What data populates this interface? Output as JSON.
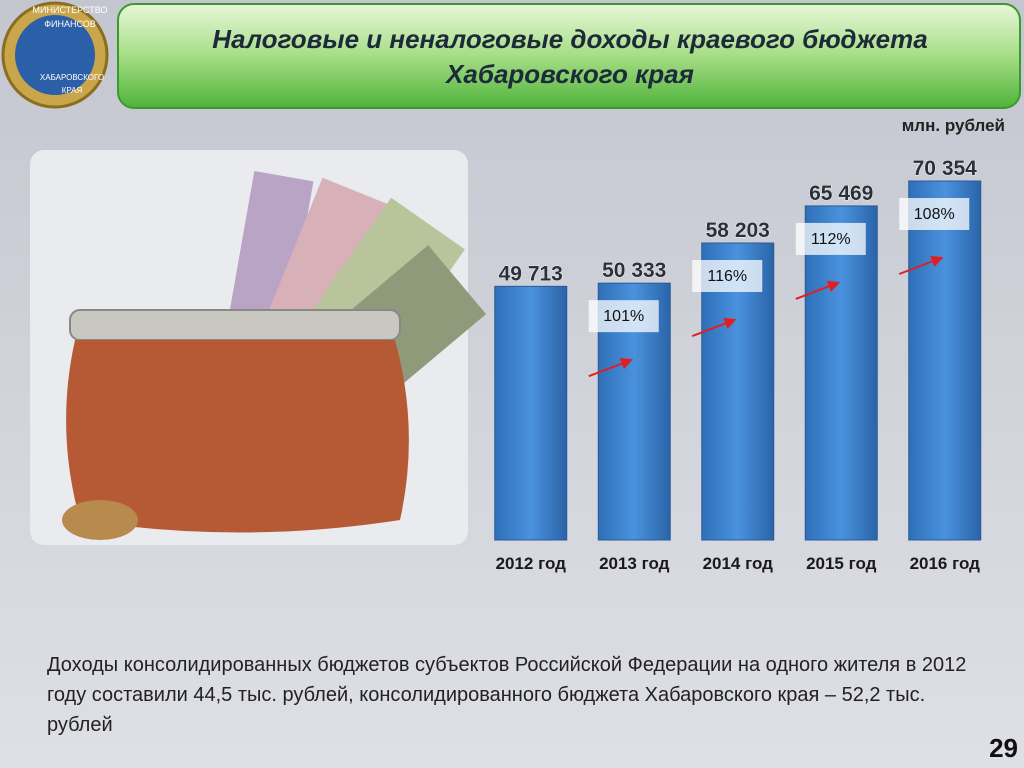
{
  "logo": {
    "lines": [
      "МИНИСТЕРСТВО",
      "ФИНАНСОВ",
      "ХАБАРОВСКОГО",
      "КРАЯ"
    ]
  },
  "chart_data": {
    "type": "bar",
    "title": "Налоговые и неналоговые доходы краевого бюджета Хабаровского края",
    "unit": "млн. рублей",
    "categories": [
      "2012 год",
      "2013 год",
      "2014 год",
      "2015 год",
      "2016 год"
    ],
    "values": [
      49713,
      50333,
      58203,
      65469,
      70354
    ],
    "value_labels": [
      "49 713",
      "50 333",
      "58 203",
      "65 469",
      "70 354"
    ],
    "color": "#3f86d4",
    "annotations": [
      "101%",
      "116%",
      "112%",
      "108%"
    ]
  },
  "note": "Доходы консолидированных бюджетов субъектов Российской Федерации на одного жителя в 2012 году  составили 44,5 тыс. рублей, консолидированного бюджета Хабаровского края – 52,2 тыс. рублей",
  "page_number": "29"
}
